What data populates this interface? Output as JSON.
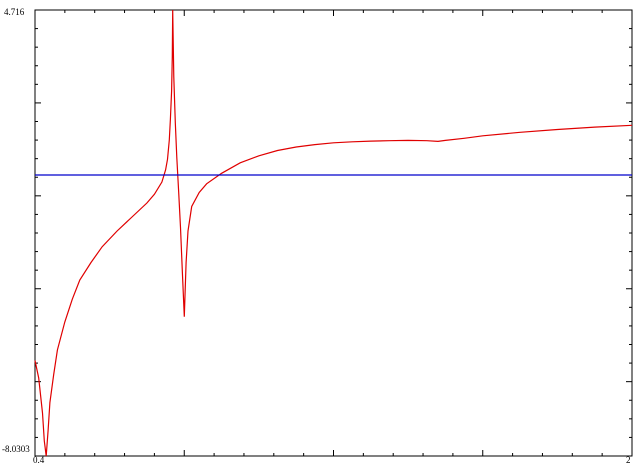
{
  "chart_data": {
    "type": "line",
    "title": "",
    "xlabel": "",
    "ylabel": "",
    "xlim": [
      0.4,
      2.0
    ],
    "ylim": [
      -8.0303,
      4.716
    ],
    "y_tick_labels": {
      "top": "4.716",
      "bottom": "-8.0303"
    },
    "x_tick_labels": {
      "left": "0.4",
      "right": "2"
    },
    "grid": false,
    "legend": "none",
    "series": [
      {
        "color": "#e00000",
        "points": [
          [
            0.4,
            -5.3
          ],
          [
            0.41,
            -5.8
          ],
          [
            0.42,
            -6.8
          ],
          [
            0.425,
            -7.6
          ],
          [
            0.43,
            -8.03
          ],
          [
            0.435,
            -7.3
          ],
          [
            0.44,
            -6.5
          ],
          [
            0.45,
            -5.7
          ],
          [
            0.46,
            -5.0
          ],
          [
            0.48,
            -4.2
          ],
          [
            0.5,
            -3.55
          ],
          [
            0.52,
            -3.0
          ],
          [
            0.55,
            -2.5
          ],
          [
            0.58,
            -2.05
          ],
          [
            0.62,
            -1.6
          ],
          [
            0.66,
            -1.2
          ],
          [
            0.7,
            -0.8
          ],
          [
            0.72,
            -0.55
          ],
          [
            0.74,
            -0.2
          ],
          [
            0.75,
            0.15
          ],
          [
            0.755,
            0.45
          ],
          [
            0.76,
            1.0
          ],
          [
            0.763,
            1.6
          ],
          [
            0.766,
            2.4
          ],
          [
            0.768,
            3.4
          ],
          [
            0.769,
            4.716
          ],
          [
            0.772,
            2.8
          ],
          [
            0.776,
            1.5
          ],
          [
            0.78,
            0.5
          ],
          [
            0.785,
            -0.5
          ],
          [
            0.79,
            -1.5
          ],
          [
            0.795,
            -2.8
          ],
          [
            0.8,
            -4.05
          ],
          [
            0.805,
            -2.5
          ],
          [
            0.81,
            -1.6
          ],
          [
            0.82,
            -0.9
          ],
          [
            0.84,
            -0.5
          ],
          [
            0.86,
            -0.25
          ],
          [
            0.9,
            0.05
          ],
          [
            0.95,
            0.35
          ],
          [
            1.0,
            0.55
          ],
          [
            1.05,
            0.7
          ],
          [
            1.1,
            0.8
          ],
          [
            1.15,
            0.87
          ],
          [
            1.2,
            0.92
          ],
          [
            1.25,
            0.95
          ],
          [
            1.3,
            0.97
          ],
          [
            1.35,
            0.98
          ],
          [
            1.4,
            0.99
          ],
          [
            1.45,
            0.98
          ],
          [
            1.48,
            0.96
          ],
          [
            1.5,
            0.99
          ],
          [
            1.55,
            1.05
          ],
          [
            1.6,
            1.12
          ],
          [
            1.7,
            1.22
          ],
          [
            1.8,
            1.3
          ],
          [
            1.9,
            1.37
          ],
          [
            2.0,
            1.42
          ]
        ]
      },
      {
        "color": "#0000cc",
        "points": [
          [
            0.4,
            0.0
          ],
          [
            2.0,
            0.0
          ]
        ]
      }
    ]
  }
}
